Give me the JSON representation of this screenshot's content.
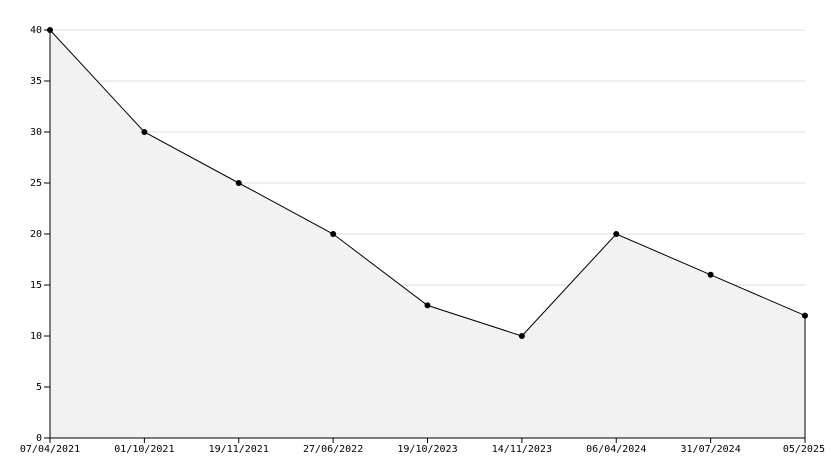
{
  "chart_data": {
    "type": "area",
    "categories": [
      "07/04/2021",
      "01/10/2021",
      "19/11/2021",
      "27/06/2022",
      "19/10/2023",
      "14/11/2023",
      "06/04/2024",
      "31/07/2024",
      "05/2025"
    ],
    "values": [
      40,
      30,
      25,
      20,
      13,
      10,
      20,
      16,
      12
    ],
    "color": "#000000",
    "fill": "#f2f2f2",
    "ylim": [
      0,
      40
    ],
    "yticks": [
      0,
      5,
      10,
      15,
      20,
      25,
      30,
      35,
      40
    ],
    "grid": true
  }
}
